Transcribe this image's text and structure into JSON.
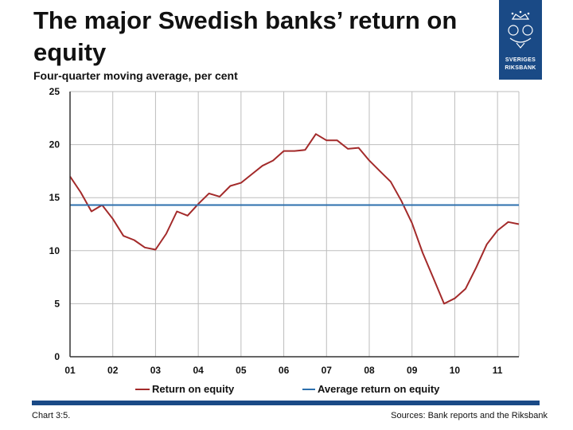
{
  "title": "The major Swedish banks’ return on equity",
  "subtitle": "Four-quarter moving average, per cent",
  "logo": {
    "line1": "SVERIGES",
    "line2": "RIKSBANK",
    "icon": "riksbank-crown-emblem-icon"
  },
  "footer": {
    "chart_label": "Chart 3:5.",
    "sources": "Sources: Bank reports and the Riksbank"
  },
  "colors": {
    "series": "#a32a2a",
    "average": "#2c6fad",
    "brand": "#1a4a86",
    "grid": "#bdbdbd"
  },
  "chart_data": {
    "type": "line",
    "x_tick_labels": [
      "01",
      "02",
      "03",
      "04",
      "05",
      "06",
      "07",
      "08",
      "09",
      "10",
      "11"
    ],
    "y_tick_labels": [
      "0",
      "5",
      "10",
      "15",
      "20",
      "25"
    ],
    "xlim": [
      2001.0,
      2011.5
    ],
    "ylim": [
      0,
      25
    ],
    "grid": true,
    "legend_position": "bottom",
    "series": [
      {
        "name": "Return on equity",
        "x": [
          2001.0,
          2001.25,
          2001.5,
          2001.75,
          2002.0,
          2002.25,
          2002.5,
          2002.75,
          2003.0,
          2003.25,
          2003.5,
          2003.75,
          2004.0,
          2004.25,
          2004.5,
          2004.75,
          2005.0,
          2005.25,
          2005.5,
          2005.75,
          2006.0,
          2006.25,
          2006.5,
          2006.75,
          2007.0,
          2007.25,
          2007.5,
          2007.75,
          2008.0,
          2008.25,
          2008.5,
          2008.75,
          2009.0,
          2009.25,
          2009.5,
          2009.75,
          2010.0,
          2010.25,
          2010.5,
          2010.75,
          2011.0,
          2011.25,
          2011.5
        ],
        "values": [
          17.0,
          15.5,
          13.7,
          14.3,
          13.0,
          11.4,
          11.0,
          10.3,
          10.1,
          11.6,
          13.7,
          13.3,
          14.4,
          15.4,
          15.1,
          16.1,
          16.4,
          17.2,
          18.0,
          18.5,
          19.4,
          19.4,
          19.5,
          21.0,
          20.4,
          20.4,
          19.6,
          19.7,
          18.5,
          17.5,
          16.5,
          14.7,
          12.6,
          9.8,
          7.4,
          5.0,
          5.5,
          6.4,
          8.4,
          10.6,
          11.9,
          12.7,
          12.5
        ]
      },
      {
        "name": "Average return on equity",
        "x": [
          2001.0,
          2011.5
        ],
        "values": [
          14.3,
          14.3
        ]
      }
    ]
  }
}
